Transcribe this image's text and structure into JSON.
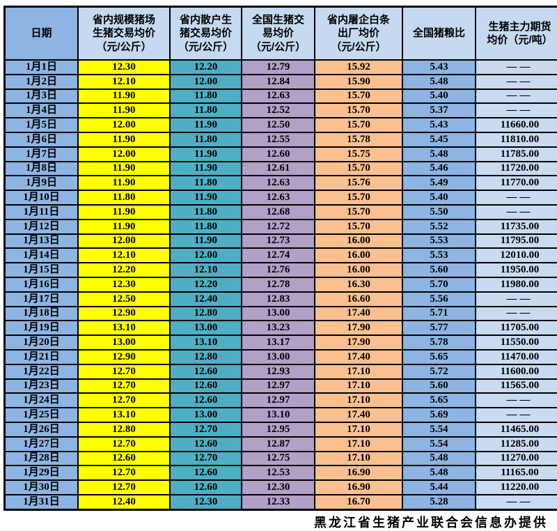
{
  "table": {
    "title_semantic": "heilongjiang-daily-pig-price-table",
    "columns": [
      {
        "label": "日期",
        "header_bg": "#8DB4E2",
        "cell_bg": "#8DB4E2"
      },
      {
        "label": "省内规模猪场\n生猪交易均价\n（元/公斤）",
        "header_bg": "#C5D9F1",
        "cell_bg": "#FFFF00"
      },
      {
        "label": "省内散户生\n猪交易均价\n（元/公斤）",
        "header_bg": "#C5D9F1",
        "cell_bg": "#4FAEC3"
      },
      {
        "label": "全国生猪交\n易均价\n（元/公斤）",
        "header_bg": "#C5D9F1",
        "cell_bg": "#B1A0C7"
      },
      {
        "label": "省内屠企白条\n出厂均价\n（元/公斤）",
        "header_bg": "#C5D9F1",
        "cell_bg": "#FAC08F"
      },
      {
        "label": "全国猪粮比",
        "header_bg": "#C5D9F1",
        "cell_bg": "#8DB4E2"
      },
      {
        "label": "生猪主力期货\n均价（元/吨）",
        "header_bg": "#C5D9F1",
        "cell_bg": "#C9DAF1"
      }
    ],
    "rows": [
      {
        "date": "1月1日",
        "values": [
          "12.30",
          "12.20",
          "12.79",
          "15.92",
          "5.43",
          "——"
        ]
      },
      {
        "date": "1月2日",
        "values": [
          "12.10",
          "12.00",
          "12.84",
          "15.90",
          "5.48",
          "——"
        ]
      },
      {
        "date": "1月3日",
        "values": [
          "11.90",
          "11.80",
          "12.63",
          "15.70",
          "5.40",
          "——"
        ]
      },
      {
        "date": "1月4日",
        "values": [
          "11.90",
          "11.80",
          "12.52",
          "15.70",
          "5.37",
          "——"
        ]
      },
      {
        "date": "1月5日",
        "values": [
          "12.00",
          "11.90",
          "12.50",
          "15.70",
          "5.43",
          "11660.00"
        ]
      },
      {
        "date": "1月6日",
        "values": [
          "11.90",
          "11.80",
          "12.55",
          "15.78",
          "5.45",
          "11810.00"
        ]
      },
      {
        "date": "1月7日",
        "values": [
          "12.00",
          "11.90",
          "12.60",
          "15.75",
          "5.48",
          "11785.00"
        ]
      },
      {
        "date": "1月8日",
        "values": [
          "11.90",
          "11.90",
          "12.61",
          "15.70",
          "5.46",
          "11720.00"
        ]
      },
      {
        "date": "1月9日",
        "values": [
          "11.90",
          "11.80",
          "12.63",
          "15.76",
          "5.49",
          "11770.00"
        ]
      },
      {
        "date": "1月10日",
        "values": [
          "11.80",
          "11.90",
          "12.63",
          "15.70",
          "5.40",
          "——"
        ]
      },
      {
        "date": "1月11日",
        "values": [
          "11.90",
          "11.80",
          "12.68",
          "15.70",
          "5.50",
          "——"
        ]
      },
      {
        "date": "1月12日",
        "values": [
          "11.90",
          "11.80",
          "12.72",
          "15.70",
          "5.52",
          "11735.00"
        ]
      },
      {
        "date": "1月13日",
        "values": [
          "12.00",
          "11.90",
          "12.73",
          "16.00",
          "5.53",
          "11795.00"
        ]
      },
      {
        "date": "1月14日",
        "values": [
          "12.10",
          "12.00",
          "12.74",
          "16.00",
          "5.53",
          "12010.00"
        ]
      },
      {
        "date": "1月15日",
        "values": [
          "12.20",
          "12.10",
          "12.76",
          "16.00",
          "5.60",
          "11950.00"
        ]
      },
      {
        "date": "1月16日",
        "values": [
          "12.30",
          "12.20",
          "12.78",
          "16.30",
          "5.70",
          "11980.00"
        ]
      },
      {
        "date": "1月17日",
        "values": [
          "12.50",
          "12.40",
          "12.83",
          "16.60",
          "5.56",
          "——"
        ]
      },
      {
        "date": "1月18日",
        "values": [
          "12.90",
          "12.80",
          "13.00",
          "17.40",
          "5.71",
          "——"
        ]
      },
      {
        "date": "1月19日",
        "values": [
          "13.10",
          "13.00",
          "13.23",
          "17.90",
          "5.77",
          "11705.00"
        ]
      },
      {
        "date": "1月20日",
        "values": [
          "13.00",
          "13.10",
          "13.17",
          "17.90",
          "5.78",
          "11550.00"
        ]
      },
      {
        "date": "1月21日",
        "values": [
          "12.90",
          "12.80",
          "13.00",
          "17.40",
          "5.65",
          "11470.00"
        ]
      },
      {
        "date": "1月22日",
        "values": [
          "12.70",
          "12.60",
          "12.93",
          "17.10",
          "5.72",
          "11600.00"
        ]
      },
      {
        "date": "1月23日",
        "values": [
          "12.70",
          "12.60",
          "12.97",
          "17.10",
          "5.60",
          "11565.00"
        ]
      },
      {
        "date": "1月24日",
        "values": [
          "12.70",
          "12.60",
          "12.97",
          "17.10",
          "5.65",
          "——"
        ]
      },
      {
        "date": "1月25日",
        "values": [
          "13.10",
          "13.00",
          "13.10",
          "17.40",
          "5.69",
          "——"
        ]
      },
      {
        "date": "1月26日",
        "values": [
          "12.80",
          "12.70",
          "12.95",
          "17.10",
          "5.54",
          "11465.00"
        ]
      },
      {
        "date": "1月27日",
        "values": [
          "12.70",
          "12.60",
          "12.87",
          "17.10",
          "5.54",
          "11285.00"
        ]
      },
      {
        "date": "1月28日",
        "values": [
          "12.60",
          "12.70",
          "12.75",
          "17.10",
          "5.48",
          "11270.00"
        ]
      },
      {
        "date": "1月29日",
        "values": [
          "12.70",
          "12.60",
          "12.53",
          "16.90",
          "5.48",
          "11165.00"
        ]
      },
      {
        "date": "1月30日",
        "values": [
          "12.70",
          "12.60",
          "12.30",
          "16.90",
          "5.44",
          "11220.00"
        ]
      },
      {
        "date": "1月31日",
        "values": [
          "12.40",
          "12.30",
          "12.33",
          "16.70",
          "5.28",
          "——"
        ]
      }
    ],
    "empty_value_marker": "——"
  },
  "footer": {
    "credit": "黑龙江省生猪产业联合会信息办提供"
  },
  "colors": {
    "border": "#000000",
    "text": "#000000",
    "date_column": "#8DB4E2",
    "header_light_blue": "#C5D9F1",
    "farm_price_yellow": "#FFFF00",
    "household_price_teal": "#4FAEC3",
    "national_price_purple": "#B1A0C7",
    "slaughter_price_orange": "#FAC08F",
    "grain_ratio_blue": "#8DB4E2",
    "futures_light_blue": "#C9DAF1"
  }
}
